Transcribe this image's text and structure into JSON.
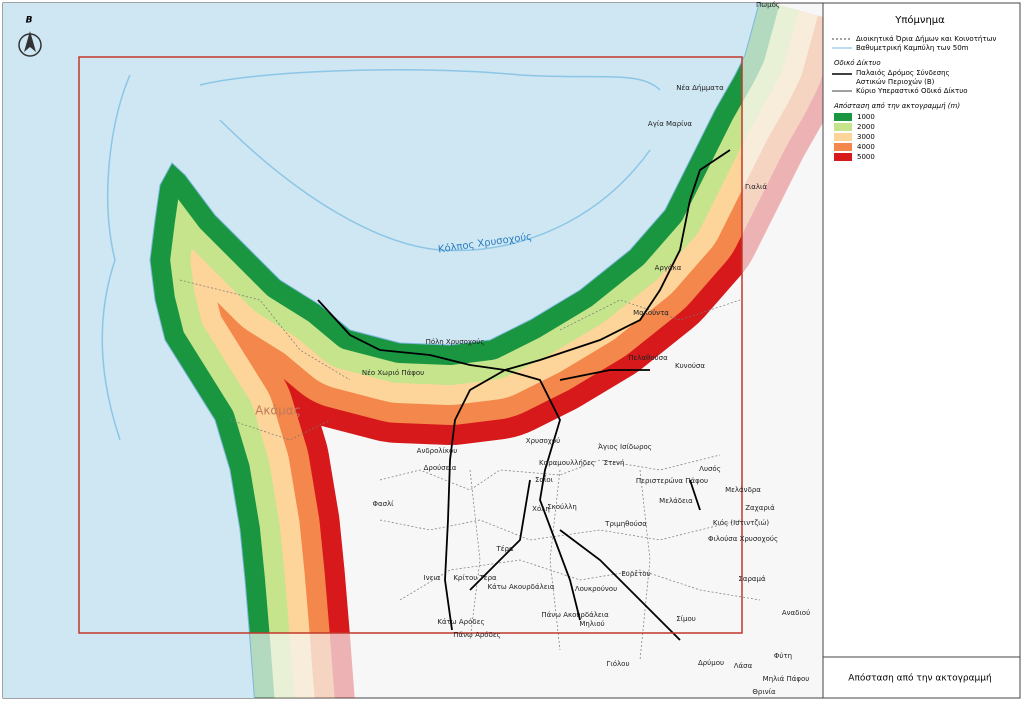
{
  "map": {
    "north": "Β",
    "sea_label": "Κόλπος Χρυσοχούς",
    "region_label": "Ακάμας",
    "places": [
      "Πωμός",
      "Νέα Δήμματα",
      "Αγία Μαρίνα",
      "Γιαλιά",
      "Αργάκα",
      "Μακούντα",
      "Πελαθούσα",
      "Κυνούσα",
      "Πόλη Χρυσοχούς",
      "Νέο Χωριό Πάφου",
      "Ανδρολίκου",
      "Δρούσεια",
      "Χρυσοχού",
      "Άγιος Ισίδωρος",
      "Καραμουλλήδες",
      "Στενή",
      "Περιστερώνα Πάφου",
      "Λυσός",
      "Μελάνδρα",
      "Μελάδεια",
      "Ζαχαριά",
      "Κιός (Ιστιντζιώ)",
      "Φιλούσα Χρυσοχούς",
      "Φασλί",
      "Σαΐοι",
      "Χόλη",
      "Σκούλλη",
      "Τριμηθούσα",
      "Τέρα",
      "Ινεια",
      "Κρίτου Τέρα",
      "Κάτω Ακουρδάλεια",
      "Ευρέτου",
      "Σαραμά",
      "Λουκρούνου",
      "Πάνω Ακουρδάλεια",
      "Μηλιού",
      "Σίμου",
      "Αναδιού",
      "Κάτω Αρόδες",
      "Πάνω Αρόδες",
      "Γιόλου",
      "Δρύμου",
      "Λάσα",
      "Φύτη",
      "Μηλιά Πάφου",
      "Θρινία"
    ]
  },
  "legend": {
    "title": "Υπόμνημα",
    "lines": [
      "Διοικητικά Όρια Δήμων και Κοινοτήτων",
      "Βαθυμετρική Καμπύλη των 50m"
    ],
    "road_heading": "Οδικό Δίκτυο",
    "roads": [
      {
        "lines": [
          "Παλαιός Δρόμος Σύνδεσης",
          "Αστικών Περιοχών (Β)"
        ]
      },
      {
        "lines": [
          "Κύριο Υπεραστικό Οδικό Δίκτυο"
        ]
      }
    ],
    "distance_heading": "Απόσταση από την ακτογραμμή (m)",
    "bands": [
      {
        "value": 1000,
        "color": "#1a9641"
      },
      {
        "value": 2000,
        "color": "#c6e48b"
      },
      {
        "value": 3000,
        "color": "#fdd59a"
      },
      {
        "value": 4000,
        "color": "#f4874b"
      },
      {
        "value": 5000,
        "color": "#d7191c"
      }
    ]
  },
  "footer": "Απόσταση από την ακτογραμμή"
}
